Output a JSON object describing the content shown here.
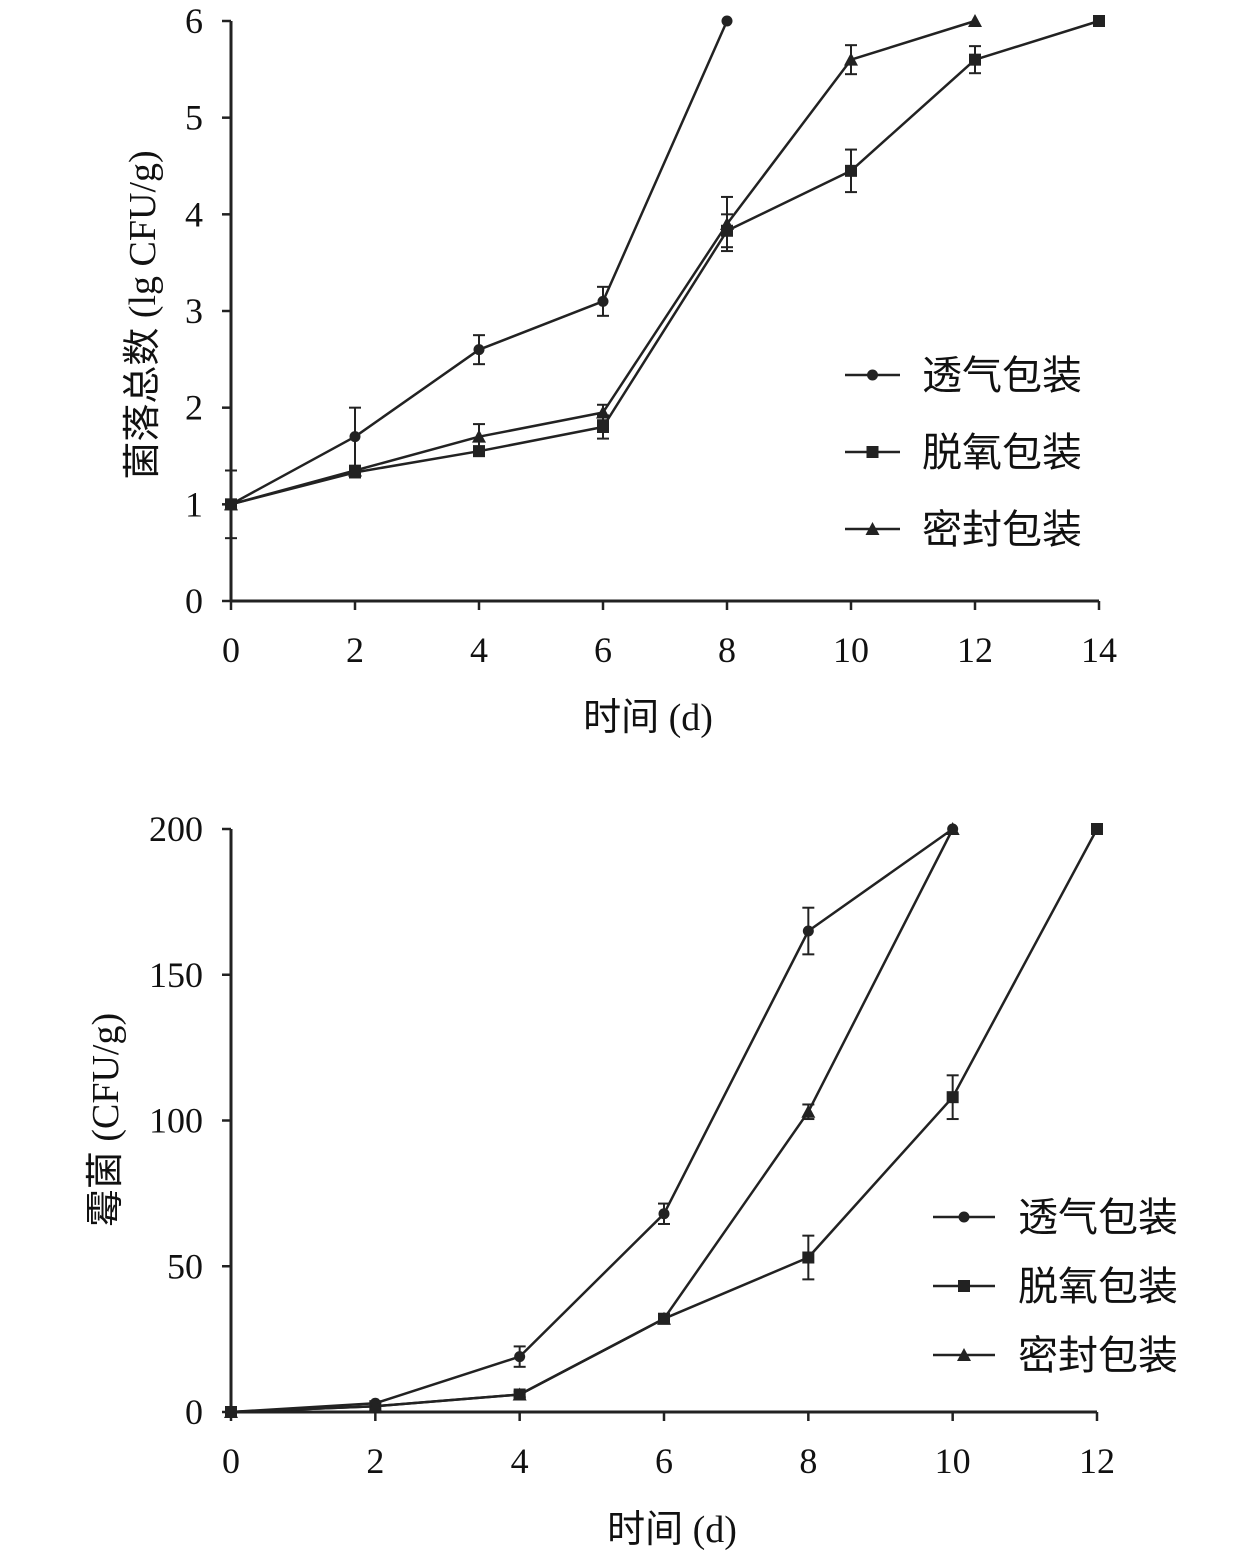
{
  "colors": {
    "series": "#222222",
    "axis": "#222222",
    "background": "#ffffff"
  },
  "chart_data": [
    {
      "id": "total",
      "type": "line",
      "xlabel": "时间 (d)",
      "ylabel": "菌落总数 (lg CFU/g)",
      "xlim": [
        0,
        14
      ],
      "ylim": [
        0,
        6
      ],
      "xticks": [
        0,
        2,
        4,
        6,
        8,
        10,
        12,
        14
      ],
      "yticks": [
        0,
        1,
        2,
        3,
        4,
        5,
        6
      ],
      "grid": false,
      "legend_position": "right",
      "series": [
        {
          "name": "透气包装",
          "marker": "circle",
          "points": [
            {
              "x": 0,
              "y": 1.0,
              "err": 0.35
            },
            {
              "x": 2,
              "y": 1.7,
              "err": 0.3
            },
            {
              "x": 4,
              "y": 2.6,
              "err": 0.15
            },
            {
              "x": 6,
              "y": 3.1,
              "err": 0.15
            },
            {
              "x": 8,
              "y": 6.0,
              "err": 0
            }
          ]
        },
        {
          "name": "脱氧包装",
          "marker": "square",
          "points": [
            {
              "x": 0,
              "y": 1.0,
              "err": 0
            },
            {
              "x": 2,
              "y": 1.33,
              "err": 0.05
            },
            {
              "x": 4,
              "y": 1.55,
              "err": 0.05
            },
            {
              "x": 6,
              "y": 1.8,
              "err": 0.12
            },
            {
              "x": 8,
              "y": 3.83,
              "err": 0.17
            },
            {
              "x": 10,
              "y": 4.45,
              "err": 0.22
            },
            {
              "x": 12,
              "y": 5.6,
              "err": 0.14
            },
            {
              "x": 14,
              "y": 6.0,
              "err": 0
            }
          ]
        },
        {
          "name": "密封包装",
          "marker": "triangle",
          "points": [
            {
              "x": 0,
              "y": 1.0,
              "err": 0
            },
            {
              "x": 2,
              "y": 1.35,
              "err": 0.04
            },
            {
              "x": 4,
              "y": 1.7,
              "err": 0.13
            },
            {
              "x": 6,
              "y": 1.95,
              "err": 0.08
            },
            {
              "x": 8,
              "y": 3.9,
              "err": 0.28
            },
            {
              "x": 10,
              "y": 5.6,
              "err": 0.15
            },
            {
              "x": 12,
              "y": 6.0,
              "err": 0
            }
          ]
        }
      ]
    },
    {
      "id": "mold",
      "type": "line",
      "xlabel": "时间 (d)",
      "ylabel": "霉菌 (CFU/g)",
      "xlim": [
        0,
        12
      ],
      "ylim": [
        0,
        200
      ],
      "xticks": [
        0,
        2,
        4,
        6,
        8,
        10,
        12
      ],
      "yticks": [
        0,
        50,
        100,
        150,
        200
      ],
      "grid": false,
      "legend_position": "bottom-right",
      "series": [
        {
          "name": "透气包装",
          "marker": "circle",
          "points": [
            {
              "x": 0,
              "y": 0,
              "err": 0
            },
            {
              "x": 2,
              "y": 3,
              "err": 0
            },
            {
              "x": 4,
              "y": 19,
              "err": 3.5
            },
            {
              "x": 6,
              "y": 68,
              "err": 3.5
            },
            {
              "x": 8,
              "y": 165,
              "err": 8
            },
            {
              "x": 10,
              "y": 200,
              "err": 0
            }
          ]
        },
        {
          "name": "脱氧包装",
          "marker": "square",
          "points": [
            {
              "x": 0,
              "y": 0,
              "err": 0
            },
            {
              "x": 2,
              "y": 2,
              "err": 0
            },
            {
              "x": 4,
              "y": 6,
              "err": 1
            },
            {
              "x": 6,
              "y": 32,
              "err": 1.5
            },
            {
              "x": 8,
              "y": 53,
              "err": 7.5
            },
            {
              "x": 10,
              "y": 108,
              "err": 7.5
            },
            {
              "x": 12,
              "y": 200,
              "err": 0
            }
          ]
        },
        {
          "name": "密封包装",
          "marker": "triangle",
          "points": [
            {
              "x": 0,
              "y": 0,
              "err": 0
            },
            {
              "x": 2,
              "y": 2,
              "err": 0
            },
            {
              "x": 4,
              "y": 6,
              "err": 1
            },
            {
              "x": 6,
              "y": 32,
              "err": 1.5
            },
            {
              "x": 8,
              "y": 103,
              "err": 2.5
            },
            {
              "x": 10,
              "y": 200,
              "err": 0
            }
          ]
        }
      ]
    }
  ]
}
